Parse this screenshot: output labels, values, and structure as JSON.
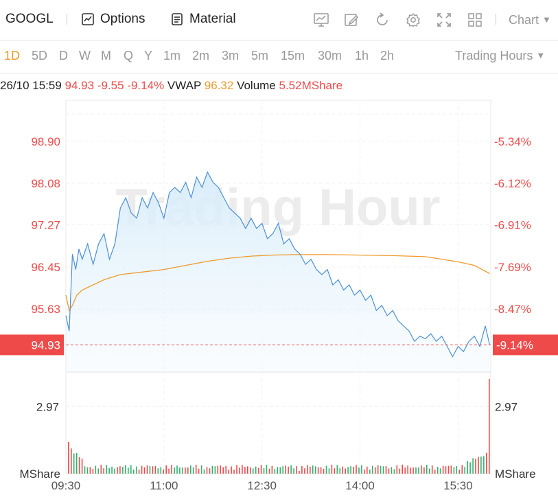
{
  "toolbar": {
    "ticker": "GOOGL",
    "options_label": "Options",
    "material_label": "Material",
    "chart_label": "Chart"
  },
  "periods": [
    "1D",
    "5D",
    "D",
    "W",
    "M",
    "Q",
    "Y",
    "1m",
    "2m",
    "3m",
    "5m",
    "15m",
    "30m",
    "1h",
    "2h"
  ],
  "active_period": "1D",
  "trading_hours_label": "Trading Hours",
  "info": {
    "datetime": "26/10 15:59",
    "price": "94.93",
    "change": "-9.55",
    "change_pct": "-9.14%",
    "vwap_label": "VWAP",
    "vwap": "96.32",
    "volume_label": "Volume",
    "volume": "5.52MShare"
  },
  "watermark": "Trading Hour",
  "colors": {
    "price_line": "#4a90d9",
    "vwap_line": "#f09a2c",
    "down": "#ef4a4a",
    "up": "#2db36b",
    "active": "#f09a2c"
  },
  "chart_data": {
    "type": "line",
    "x_ticks": [
      "09:30",
      "11:00",
      "12:30",
      "14:00",
      "15:30"
    ],
    "y_ticks_left": [
      "98.90",
      "98.08",
      "97.27",
      "96.45",
      "95.63"
    ],
    "y_ticks_right": [
      "-5.34%",
      "-6.12%",
      "-6.91%",
      "-7.69%",
      "-8.47%"
    ],
    "current_price_label": "94.93",
    "current_pct_label": "-9.14%",
    "ylim": [
      94.4,
      99.7
    ],
    "volume_tick": "2.97",
    "volume_tick_right": "2.97",
    "volume_unit_left": "MShare",
    "volume_unit_right": "MShare",
    "volume_ylim": [
      0,
      4.5
    ],
    "series": [
      {
        "points": [
          [
            "09:30",
            95.5
          ],
          [
            "09:33",
            95.2
          ],
          [
            "09:36",
            96.7
          ],
          [
            "09:39",
            96.4
          ],
          [
            "09:42",
            96.8
          ],
          [
            "09:45",
            96.6
          ],
          [
            "09:50",
            96.9
          ],
          [
            "09:55",
            96.5
          ],
          [
            "10:00",
            96.9
          ],
          [
            "10:05",
            97.1
          ],
          [
            "10:10",
            96.6
          ],
          [
            "10:15",
            96.9
          ],
          [
            "10:20",
            97.6
          ],
          [
            "10:25",
            97.8
          ],
          [
            "10:30",
            97.5
          ],
          [
            "10:35",
            97.4
          ],
          [
            "10:40",
            97.8
          ],
          [
            "10:45",
            97.6
          ],
          [
            "10:50",
            97.9
          ],
          [
            "10:55",
            97.7
          ],
          [
            "11:00",
            97.4
          ],
          [
            "11:05",
            97.9
          ],
          [
            "11:10",
            98.0
          ],
          [
            "11:15",
            97.9
          ],
          [
            "11:20",
            98.1
          ],
          [
            "11:25",
            97.8
          ],
          [
            "11:30",
            98.2
          ],
          [
            "11:35",
            98.0
          ],
          [
            "11:40",
            98.3
          ],
          [
            "11:45",
            98.1
          ],
          [
            "11:50",
            98.0
          ],
          [
            "11:55",
            97.8
          ],
          [
            "12:00",
            97.6
          ],
          [
            "12:05",
            97.5
          ],
          [
            "12:10",
            97.4
          ],
          [
            "12:15",
            97.2
          ],
          [
            "12:20",
            97.4
          ],
          [
            "12:25",
            97.2
          ],
          [
            "12:30",
            97.3
          ],
          [
            "12:35",
            97.0
          ],
          [
            "12:40",
            97.1
          ],
          [
            "12:45",
            97.3
          ],
          [
            "12:50",
            96.9
          ],
          [
            "12:55",
            97.0
          ],
          [
            "13:00",
            96.8
          ],
          [
            "13:05",
            96.7
          ],
          [
            "13:10",
            96.5
          ],
          [
            "13:15",
            96.6
          ],
          [
            "13:20",
            96.4
          ],
          [
            "13:25",
            96.3
          ],
          [
            "13:30",
            96.4
          ],
          [
            "13:35",
            96.1
          ],
          [
            "13:40",
            96.2
          ],
          [
            "13:45",
            96.0
          ],
          [
            "13:50",
            96.1
          ],
          [
            "13:55",
            95.9
          ],
          [
            "14:00",
            96.0
          ],
          [
            "14:05",
            95.8
          ],
          [
            "14:10",
            95.9
          ],
          [
            "14:15",
            95.6
          ],
          [
            "14:20",
            95.7
          ],
          [
            "14:25",
            95.5
          ],
          [
            "14:30",
            95.6
          ],
          [
            "14:35",
            95.4
          ],
          [
            "14:40",
            95.3
          ],
          [
            "14:45",
            95.2
          ],
          [
            "14:50",
            95.0
          ],
          [
            "14:55",
            95.1
          ],
          [
            "15:00",
            95.05
          ],
          [
            "15:05",
            95.15
          ],
          [
            "15:10",
            95.0
          ],
          [
            "15:15",
            95.1
          ],
          [
            "15:20",
            94.9
          ],
          [
            "15:25",
            94.7
          ],
          [
            "15:30",
            94.9
          ],
          [
            "15:35",
            94.8
          ],
          [
            "15:40",
            95.0
          ],
          [
            "15:45",
            95.1
          ],
          [
            "15:50",
            94.9
          ],
          [
            "15:55",
            95.3
          ],
          [
            "15:59",
            94.93
          ]
        ]
      },
      {
        "points": [
          [
            "09:30",
            95.9
          ],
          [
            "09:33",
            95.6
          ],
          [
            "09:36",
            95.7
          ],
          [
            "09:40",
            95.9
          ],
          [
            "09:45",
            96.0
          ],
          [
            "09:55",
            96.1
          ],
          [
            "10:05",
            96.2
          ],
          [
            "10:20",
            96.3
          ],
          [
            "10:40",
            96.35
          ],
          [
            "11:00",
            96.4
          ],
          [
            "11:20",
            96.48
          ],
          [
            "11:40",
            96.56
          ],
          [
            "12:00",
            96.62
          ],
          [
            "12:20",
            96.66
          ],
          [
            "12:40",
            96.68
          ],
          [
            "13:00",
            96.69
          ],
          [
            "13:30",
            96.69
          ],
          [
            "14:00",
            96.68
          ],
          [
            "14:30",
            96.67
          ],
          [
            "15:00",
            96.65
          ],
          [
            "15:15",
            96.6
          ],
          [
            "15:30",
            96.55
          ],
          [
            "15:45",
            96.48
          ],
          [
            "15:59",
            96.32
          ]
        ]
      }
    ]
  }
}
